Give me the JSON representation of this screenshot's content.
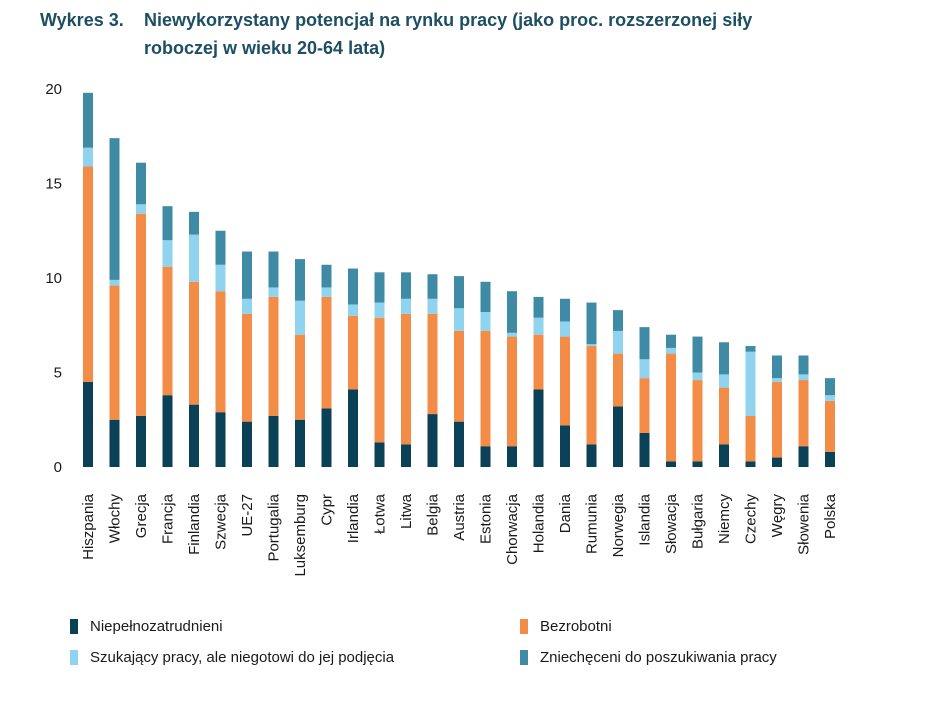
{
  "title": {
    "label": "Wykres 3.",
    "line1": "Niewykorzystany potencjał na rynku pracy (jako proc. rozszerzonej siły",
    "line2": "roboczej w wieku 20-64 lata)"
  },
  "colors": {
    "underemployed": "#0b4157",
    "unemployed": "#f28c46",
    "seeking_not_available": "#8fd3ee",
    "discouraged": "#3f8aa4",
    "title": "#1d4e63"
  },
  "legend": [
    {
      "key": "underemployed",
      "label": "Niepełnozatrudnieni"
    },
    {
      "key": "unemployed",
      "label": "Bezrobotni"
    },
    {
      "key": "seeking_not_available",
      "label": "Szukający pracy, ale niegotowi do jej podjęcia"
    },
    {
      "key": "discouraged",
      "label": "Zniechęceni do poszukiwania pracy"
    }
  ],
  "chart_data": {
    "type": "bar",
    "stacked": true,
    "title": "Niewykorzystany potencjał na rynku pracy (jako proc. rozszerzonej siły roboczej w wieku 20-64 lata)",
    "xlabel": "",
    "ylabel": "",
    "ylim": [
      0,
      20
    ],
    "yticks": [
      0,
      5,
      10,
      15,
      20
    ],
    "grid": false,
    "legend_position": "bottom",
    "categories": [
      "Hiszpania",
      "Włochy",
      "Grecja",
      "Francja",
      "Finlandia",
      "Szwecja",
      "UE-27",
      "Portugalia",
      "Luksemburg",
      "Cypr",
      "Irlandia",
      "Łotwa",
      "Litwa",
      "Belgia",
      "Austria",
      "Estonia",
      "Chorwacja",
      "Holandia",
      "Dania",
      "Rumunia",
      "Norwegia",
      "Islandia",
      "Słowacja",
      "Bułgaria",
      "Niemcy",
      "Czechy",
      "Węgry",
      "Słowenia",
      "Polska"
    ],
    "series": [
      {
        "name": "Niepełnozatrudnieni",
        "key": "underemployed",
        "values": [
          4.5,
          2.5,
          2.7,
          3.8,
          3.3,
          2.9,
          2.4,
          2.7,
          2.5,
          3.1,
          4.1,
          1.3,
          1.2,
          2.8,
          2.4,
          1.1,
          1.1,
          4.1,
          2.2,
          1.2,
          3.2,
          1.8,
          0.3,
          0.3,
          1.2,
          0.3,
          0.5,
          1.1,
          0.8
        ]
      },
      {
        "name": "Bezrobotni",
        "key": "unemployed",
        "values": [
          11.4,
          7.1,
          10.7,
          6.8,
          6.5,
          6.4,
          5.7,
          6.3,
          4.5,
          5.9,
          3.9,
          6.6,
          6.9,
          5.3,
          4.8,
          6.1,
          5.8,
          2.9,
          4.7,
          5.2,
          2.8,
          2.9,
          5.7,
          4.3,
          3.0,
          2.4,
          4.0,
          3.5,
          2.7
        ]
      },
      {
        "name": "Szukający pracy, ale niegotowi do jej podjęcia",
        "key": "seeking_not_available",
        "values": [
          1.0,
          0.3,
          0.5,
          1.4,
          2.5,
          1.4,
          0.8,
          0.5,
          1.8,
          0.5,
          0.6,
          0.8,
          0.8,
          0.8,
          1.2,
          1.0,
          0.2,
          0.9,
          0.8,
          0.1,
          1.2,
          1.0,
          0.3,
          0.4,
          0.7,
          3.4,
          0.2,
          0.3,
          0.3
        ]
      },
      {
        "name": "Zniechęceni do poszukiwania pracy",
        "key": "discouraged",
        "values": [
          2.9,
          7.5,
          2.2,
          1.8,
          1.2,
          1.8,
          2.5,
          1.9,
          2.2,
          1.2,
          1.9,
          1.6,
          1.4,
          1.3,
          1.7,
          1.6,
          2.2,
          1.1,
          1.2,
          2.2,
          1.1,
          1.7,
          0.7,
          1.9,
          1.7,
          0.3,
          1.2,
          1.0,
          0.9
        ]
      }
    ]
  }
}
